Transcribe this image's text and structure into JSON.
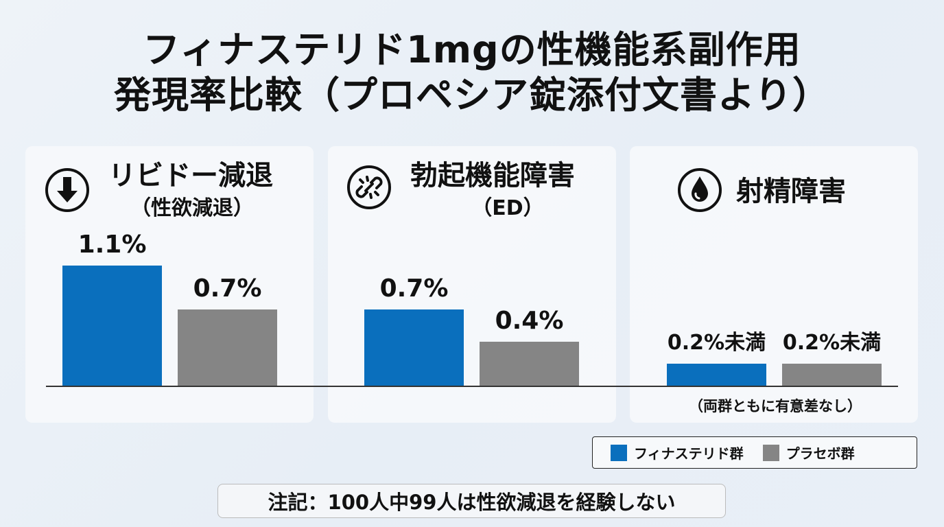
{
  "title": {
    "line1": "フィナステリド1mgの性機能系副作用",
    "line2": "発現率比較（プロペシア錠添付文書より）"
  },
  "colors": {
    "finasteride": "#0a6fbd",
    "placebo": "#858585"
  },
  "panels": [
    {
      "icon": "down-arrow-circle-icon",
      "heading": "リビドー減退",
      "subheading": "（性欲減退）",
      "values": [
        "1.1%",
        "0.7%"
      ]
    },
    {
      "icon": "broken-link-icon",
      "heading": "勃起機能障害",
      "subheading": "（ED）",
      "values": [
        "0.7%",
        "0.4%"
      ]
    },
    {
      "icon": "water-drop-icon",
      "heading": "射精障害",
      "subheading": "",
      "values": [
        "0.2%未満",
        "0.2%未満"
      ],
      "note": "（両群ともに有意差なし）"
    }
  ],
  "legend": {
    "finasteride": "フィナステリド群",
    "placebo": "プラセボ群"
  },
  "footnote": "注記：100人中99人は性欲減退を経験しない",
  "chart_data": {
    "type": "bar",
    "title": "フィナステリド1mgの性機能系副作用発現率比較（プロペシア錠添付文書より）",
    "categories": [
      "リビドー減退（性欲減退）",
      "勃起機能障害（ED）",
      "射精障害"
    ],
    "series": [
      {
        "name": "フィナステリド群",
        "values": [
          1.1,
          0.7,
          0.2
        ]
      },
      {
        "name": "プラセボ群",
        "values": [
          0.7,
          0.4,
          0.2
        ]
      }
    ],
    "unit": "%",
    "grid": false,
    "legend_position": "bottom-right"
  }
}
